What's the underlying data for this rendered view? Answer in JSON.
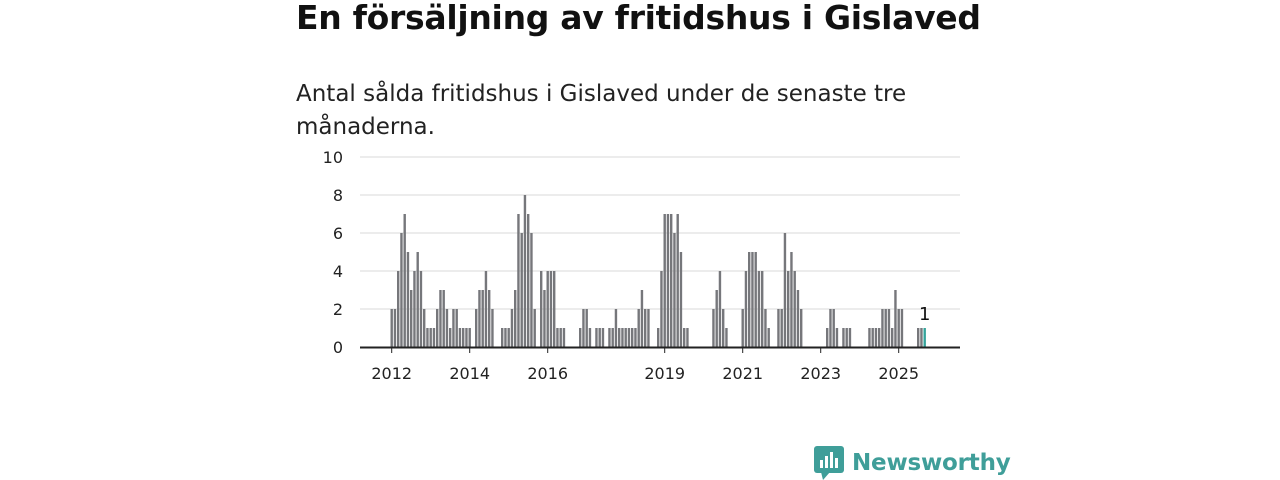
{
  "header": {
    "title": "En försäljning av fritidshus i Gislaved",
    "subtitle": "Antal sålda fritidshus i Gislaved under de senaste tre månaderna."
  },
  "brand": {
    "name": "Newsworthy",
    "icon": "newsworthy-logo-icon",
    "color": "#3f9e99"
  },
  "chart_data": {
    "type": "bar",
    "x_start": "2012-01",
    "x_interval": "month",
    "ylim": [
      0,
      10
    ],
    "yticks": [
      0,
      2,
      4,
      6,
      8,
      10
    ],
    "xtick_labels": [
      "2012",
      "2014",
      "2016",
      "2019",
      "2021",
      "2023",
      "2025"
    ],
    "grid": true,
    "bar_color": "#76777b",
    "highlight_color": "#34a39b",
    "highlight_label": "1",
    "values": [
      2,
      2,
      4,
      6,
      7,
      5,
      3,
      4,
      5,
      4,
      2,
      1,
      1,
      1,
      2,
      3,
      3,
      2,
      1,
      2,
      2,
      1,
      1,
      1,
      1,
      0,
      2,
      3,
      3,
      4,
      3,
      2,
      0,
      0,
      1,
      1,
      1,
      2,
      3,
      7,
      6,
      8,
      7,
      6,
      2,
      0,
      4,
      3,
      4,
      4,
      4,
      1,
      1,
      1,
      0,
      0,
      0,
      0,
      1,
      2,
      2,
      1,
      0,
      1,
      1,
      1,
      0,
      1,
      1,
      2,
      1,
      1,
      1,
      1,
      1,
      1,
      2,
      3,
      2,
      2,
      0,
      0,
      1,
      4,
      7,
      7,
      7,
      6,
      7,
      5,
      1,
      1,
      0,
      0,
      0,
      0,
      0,
      0,
      0,
      2,
      3,
      4,
      2,
      1,
      0,
      0,
      0,
      0,
      2,
      4,
      5,
      5,
      5,
      4,
      4,
      2,
      1,
      0,
      0,
      2,
      2,
      6,
      4,
      5,
      4,
      3,
      2,
      0,
      0,
      0,
      0,
      0,
      0,
      0,
      1,
      2,
      2,
      1,
      0,
      1,
      1,
      1,
      0,
      0,
      0,
      0,
      0,
      1,
      1,
      1,
      1,
      2,
      2,
      2,
      1,
      3,
      2,
      2,
      0,
      0,
      0,
      0,
      1,
      1,
      1
    ]
  }
}
